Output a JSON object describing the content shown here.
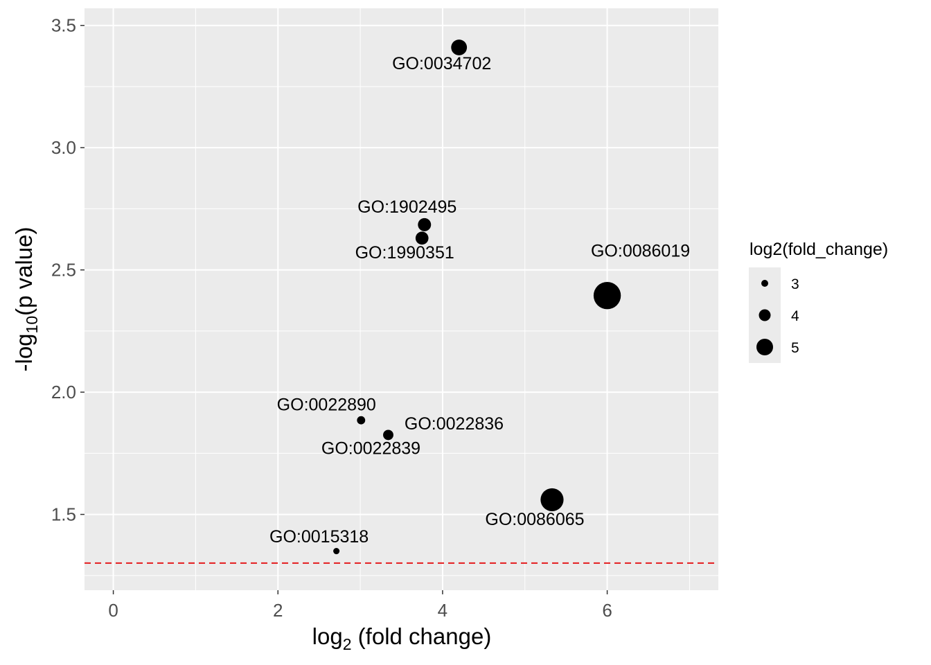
{
  "chart_data": {
    "type": "scatter",
    "xlabel_main": "log",
    "xlabel_sub": "2",
    "xlabel_rest": " (fold change)",
    "ylabel_main": "-log",
    "ylabel_sub": "10",
    "ylabel_rest": "(p value)",
    "xlim": [
      -0.35,
      7.35
    ],
    "ylim": [
      1.19,
      3.57
    ],
    "x_ticks": [
      0,
      2,
      4,
      6
    ],
    "x_tick_labels": [
      "0",
      "2",
      "4",
      "6"
    ],
    "y_ticks": [
      1.5,
      2.0,
      2.5,
      3.0,
      3.5
    ],
    "y_tick_labels": [
      "1.5",
      "2.0",
      "2.5",
      "3.0",
      "3.5"
    ],
    "threshold_y": 1.301,
    "threshold_color": "#e41a1c",
    "panel_background": "#ebebeb",
    "grid": true,
    "legend": {
      "title": "log2(fold_change)",
      "position": "right",
      "entries": [
        {
          "label": "3",
          "value": 3
        },
        {
          "label": "4",
          "value": 4
        },
        {
          "label": "5",
          "value": 5
        }
      ]
    },
    "points": [
      {
        "x": 4.2,
        "y": 3.41,
        "size": 4.2,
        "label": "GO:0034702",
        "label_pos": "below"
      },
      {
        "x": 3.78,
        "y": 2.685,
        "size": 3.78,
        "label": "GO:1902495",
        "label_pos": "above"
      },
      {
        "x": 3.75,
        "y": 2.63,
        "size": 3.75,
        "label": "GO:1990351",
        "label_pos": "below"
      },
      {
        "x": 6.0,
        "y": 2.395,
        "size": 6.0,
        "label": "GO:0086019",
        "label_pos": "above-far"
      },
      {
        "x": 3.01,
        "y": 1.885,
        "size": 3.01,
        "label": "GO:0022890",
        "label_pos": "above-left"
      },
      {
        "x": 3.34,
        "y": 1.825,
        "size": 3.34,
        "label": "GO:0022836",
        "label_pos": "right"
      },
      {
        "x": 3.34,
        "y": 1.825,
        "size": 3.34,
        "label": "GO:0022839",
        "label_pos": "below"
      },
      {
        "x": 5.33,
        "y": 1.56,
        "size": 5.33,
        "label": "GO:0086065",
        "label_pos": "below"
      },
      {
        "x": 2.71,
        "y": 1.35,
        "size": 2.71,
        "label": "GO:0015318",
        "label_pos": "above"
      }
    ]
  }
}
